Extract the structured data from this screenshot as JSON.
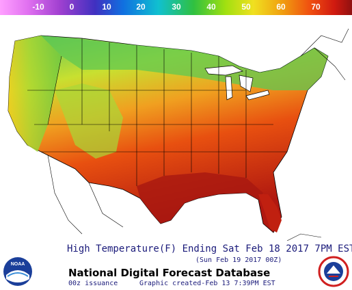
{
  "scale": {
    "ticks": [
      "-10",
      "0",
      "10",
      "20",
      "30",
      "40",
      "50",
      "60",
      "70"
    ],
    "colors": [
      "#ff80ff",
      "#c040d0",
      "#6030c0",
      "#1040d0",
      "#10a0e0",
      "#00d0b0",
      "#30c040",
      "#90e010",
      "#f0e020",
      "#f0a010",
      "#f06010",
      "#e02010",
      "#a01010"
    ]
  },
  "caption": {
    "title": "High Temperature(F) Ending Sat Feb 18 2017  7PM EST",
    "valid": "(Sun Feb 19 2017 00Z)",
    "database": "National Digital Forecast Database",
    "issuance": "00z issuance",
    "created": "Graphic created-Feb 13  7:39PM EST"
  },
  "logos": {
    "noaa": "NOAA",
    "nws": "NATIONAL WEATHER SERVICE"
  }
}
